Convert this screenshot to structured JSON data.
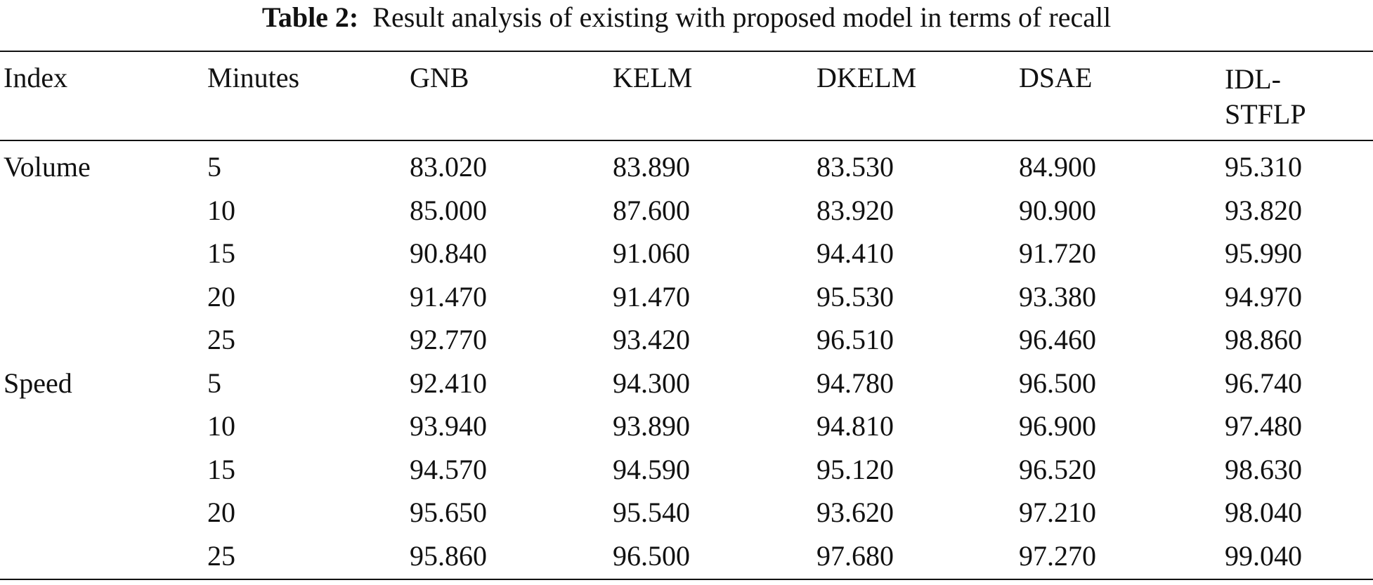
{
  "caption": {
    "label": "Table 2:",
    "text": "Result analysis of existing with proposed model in terms of recall"
  },
  "table": {
    "headers": [
      "Index",
      "Minutes",
      "GNB",
      "KELM",
      "DKELM",
      "DSAE",
      "IDL-",
      "STFLP"
    ],
    "groups": [
      {
        "name": "Volume",
        "rows": [
          [
            "5",
            "83.020",
            "83.890",
            "83.530",
            "84.900",
            "95.310"
          ],
          [
            "10",
            "85.000",
            "87.600",
            "83.920",
            "90.900",
            "93.820"
          ],
          [
            "15",
            "90.840",
            "91.060",
            "94.410",
            "91.720",
            "95.990"
          ],
          [
            "20",
            "91.470",
            "91.470",
            "95.530",
            "93.380",
            "94.970"
          ],
          [
            "25",
            "92.770",
            "93.420",
            "96.510",
            "96.460",
            "98.860"
          ]
        ]
      },
      {
        "name": "Speed",
        "rows": [
          [
            "5",
            "92.410",
            "94.300",
            "94.780",
            "96.500",
            "96.740"
          ],
          [
            "10",
            "93.940",
            "93.890",
            "94.810",
            "96.900",
            "97.480"
          ],
          [
            "15",
            "94.570",
            "94.590",
            "95.120",
            "96.520",
            "98.630"
          ],
          [
            "20",
            "95.650",
            "95.540",
            "93.620",
            "97.210",
            "98.040"
          ],
          [
            "25",
            "95.860",
            "96.500",
            "97.680",
            "97.270",
            "99.040"
          ]
        ]
      }
    ]
  }
}
